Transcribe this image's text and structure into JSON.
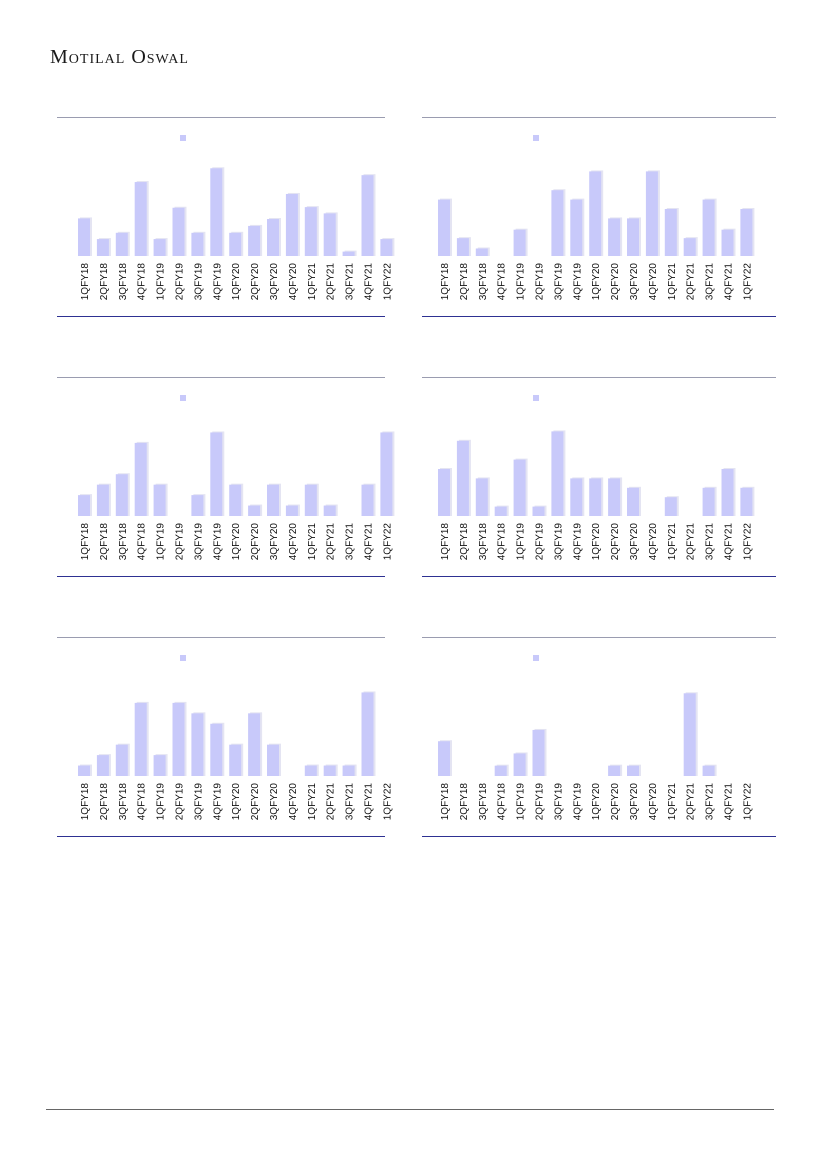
{
  "brand": "Motilal Oswal",
  "colors": {
    "bar": "#c8c9fa",
    "bar_edge": "#e4e4f2",
    "legend": "#c8c9fa",
    "rule_top": "#9a9cb0",
    "rule_bottom": "#2e3192"
  },
  "chart_data": [
    {
      "type": "bar",
      "categories": [
        "1QFY18",
        "2QFY18",
        "3QFY18",
        "4QFY18",
        "1QFY19",
        "2QFY19",
        "3QFY19",
        "4QFY19",
        "1QFY20",
        "2QFY20",
        "3QFY20",
        "4QFY20",
        "1QFY21",
        "2QFY21",
        "3QFY21",
        "4QFY21",
        "1QFY22"
      ],
      "values": [
        6,
        2.7,
        3.7,
        11.8,
        2.7,
        7.7,
        3.7,
        14,
        3.7,
        4.8,
        5.9,
        9.9,
        7.8,
        6.8,
        0.7,
        12.9,
        2.7
      ],
      "ylim": [
        0,
        15
      ]
    },
    {
      "type": "bar",
      "categories": [
        "1QFY18",
        "2QFY18",
        "3QFY18",
        "4QFY18",
        "1QFY19",
        "2QFY19",
        "3QFY19",
        "4QFY19",
        "1QFY20",
        "2QFY20",
        "3QFY20",
        "4QFY20",
        "1QFY21",
        "2QFY21",
        "3QFY21",
        "4QFY21",
        "1QFY22"
      ],
      "values": [
        6,
        1.9,
        0.8,
        0,
        2.8,
        0,
        7,
        6,
        9,
        4,
        4,
        9,
        5,
        1.9,
        6,
        2.8,
        5
      ],
      "ylim": [
        0,
        10
      ]
    },
    {
      "type": "bar",
      "categories": [
        "1QFY18",
        "2QFY18",
        "3QFY18",
        "4QFY18",
        "1QFY19",
        "2QFY19",
        "3QFY19",
        "4QFY19",
        "1QFY20",
        "2QFY20",
        "3QFY20",
        "4QFY20",
        "1QFY21",
        "2QFY21",
        "3QFY21",
        "4QFY21",
        "1QFY22"
      ],
      "values": [
        2,
        3,
        4,
        7,
        3,
        0,
        2,
        8,
        3,
        1,
        3,
        1,
        3,
        1,
        0,
        3,
        8
      ],
      "ylim": [
        0,
        9
      ]
    },
    {
      "type": "bar",
      "categories": [
        "1QFY18",
        "2QFY18",
        "3QFY18",
        "4QFY18",
        "1QFY19",
        "2QFY19",
        "3QFY19",
        "4QFY19",
        "1QFY20",
        "2QFY20",
        "3QFY20",
        "4QFY20",
        "1QFY21",
        "2QFY21",
        "3QFY21",
        "4QFY21",
        "1QFY22"
      ],
      "values": [
        5,
        8,
        4,
        1,
        6,
        1,
        9,
        4,
        4,
        4,
        3,
        0,
        2,
        0,
        3,
        5,
        3
      ],
      "ylim": [
        0,
        10
      ]
    },
    {
      "type": "bar",
      "categories": [
        "1QFY18",
        "2QFY18",
        "3QFY18",
        "4QFY18",
        "1QFY19",
        "2QFY19",
        "3QFY19",
        "4QFY19",
        "1QFY20",
        "2QFY20",
        "3QFY20",
        "4QFY20",
        "1QFY21",
        "2QFY21",
        "3QFY21",
        "4QFY21",
        "1QFY22"
      ],
      "values": [
        1,
        2,
        3,
        7,
        2,
        7,
        6,
        5,
        3,
        6,
        3,
        0,
        1,
        1,
        1,
        8,
        0
      ],
      "ylim": [
        0,
        9
      ]
    },
    {
      "type": "bar",
      "categories": [
        "1QFY18",
        "2QFY18",
        "3QFY18",
        "4QFY18",
        "1QFY19",
        "2QFY19",
        "3QFY19",
        "4QFY19",
        "1QFY20",
        "2QFY20",
        "3QFY20",
        "4QFY20",
        "1QFY21",
        "2QFY21",
        "3QFY21",
        "4QFY21",
        "1QFY22"
      ],
      "values": [
        3.7,
        0,
        0,
        1.1,
        2.4,
        4.9,
        0,
        0,
        0,
        1.1,
        1.1,
        0,
        0,
        8.8,
        1.1,
        0,
        0
      ],
      "ylim": [
        0,
        10
      ]
    }
  ]
}
